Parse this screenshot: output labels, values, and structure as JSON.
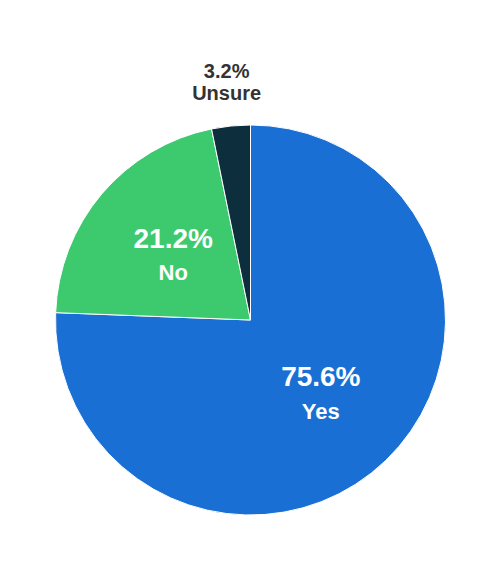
{
  "chart_data": {
    "type": "pie",
    "categories": [
      "Yes",
      "No",
      "Unsure"
    ],
    "values": [
      75.6,
      21.2,
      3.2
    ],
    "value_labels": [
      "75.6%",
      "21.2%",
      "3.2%"
    ],
    "colors": [
      "#1a6fd4",
      "#3dca6e",
      "#0d2e3d"
    ],
    "data_labels": true
  }
}
